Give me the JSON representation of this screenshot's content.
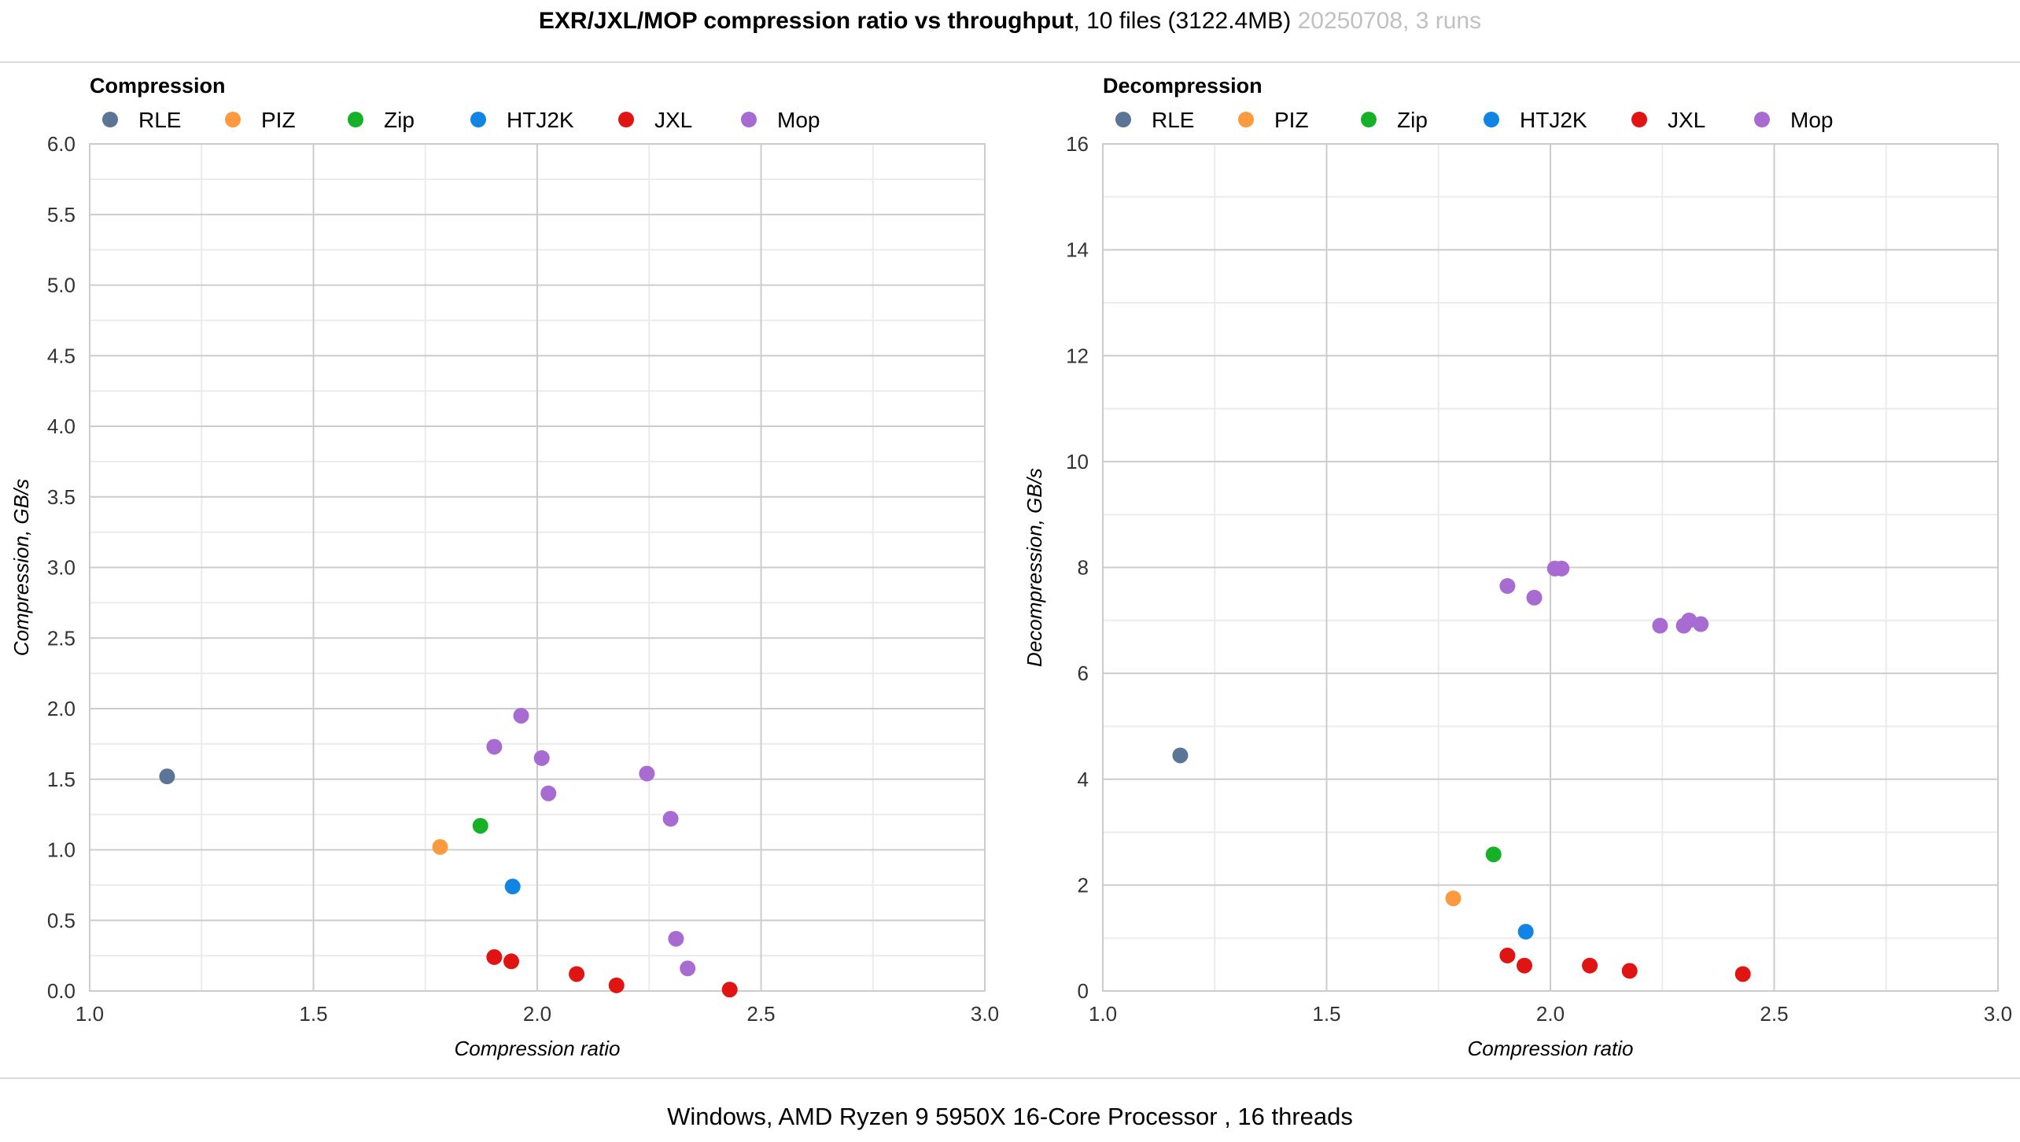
{
  "header": {
    "title_bold": "EXR/JXL/MOP compression ratio vs throughput",
    "title_normal": ", 10 files (3122.4MB)",
    "title_muted": " 20250708, 3 runs"
  },
  "footer": {
    "text": "Windows, AMD Ryzen 9 5950X 16-Core Processor , 16 threads"
  },
  "colors": {
    "RLE": "#5b7596",
    "PIZ": "#fb9a3f",
    "Zip": "#17b127",
    "HTJ2K": "#1085e3",
    "JXL": "#e11414",
    "Mop": "#a86bd1"
  },
  "chart_data": [
    {
      "type": "scatter",
      "title": "Compression",
      "xlabel": "Compression ratio",
      "ylabel": "Compression, GB/s",
      "xlim": [
        1.0,
        3.0
      ],
      "ylim": [
        0.0,
        6.0
      ],
      "x_ticks": [
        "1.0",
        "1.5",
        "2.0",
        "2.5",
        "3.0"
      ],
      "y_ticks": [
        "0.0",
        "0.5",
        "1.0",
        "1.5",
        "2.0",
        "2.5",
        "3.0",
        "3.5",
        "4.0",
        "4.5",
        "5.0",
        "5.5",
        "6.0"
      ],
      "grid": true,
      "legend": "top-left",
      "series": [
        {
          "name": "RLE",
          "points": [
            [
              1.173,
              1.52
            ]
          ]
        },
        {
          "name": "PIZ",
          "points": [
            [
              1.783,
              1.02
            ]
          ]
        },
        {
          "name": "Zip",
          "points": [
            [
              1.873,
              1.17
            ]
          ]
        },
        {
          "name": "HTJ2K",
          "points": [
            [
              1.945,
              0.74
            ]
          ]
        },
        {
          "name": "JXL",
          "points": [
            [
              1.904,
              0.24
            ],
            [
              1.942,
              0.21
            ],
            [
              2.088,
              0.12
            ],
            [
              2.177,
              0.04
            ],
            [
              2.43,
              0.01
            ]
          ]
        },
        {
          "name": "Mop",
          "points": [
            [
              1.904,
              1.73
            ],
            [
              1.964,
              1.95
            ],
            [
              2.01,
              1.65
            ],
            [
              2.025,
              1.4
            ],
            [
              2.245,
              1.54
            ],
            [
              2.298,
              1.22
            ],
            [
              2.31,
              0.37
            ],
            [
              2.336,
              0.16
            ]
          ]
        }
      ]
    },
    {
      "type": "scatter",
      "title": "Decompression",
      "xlabel": "Compression ratio",
      "ylabel": "Decompression, GB/s",
      "xlim": [
        1.0,
        3.0
      ],
      "ylim": [
        0,
        16
      ],
      "x_ticks": [
        "1.0",
        "1.5",
        "2.0",
        "2.5",
        "3.0"
      ],
      "y_ticks": [
        "0",
        "2",
        "4",
        "6",
        "8",
        "10",
        "12",
        "14",
        "16"
      ],
      "grid": true,
      "legend": "top-left",
      "series": [
        {
          "name": "RLE",
          "points": [
            [
              1.173,
              4.45
            ]
          ]
        },
        {
          "name": "PIZ",
          "points": [
            [
              1.783,
              1.75
            ]
          ]
        },
        {
          "name": "Zip",
          "points": [
            [
              1.873,
              2.58
            ]
          ]
        },
        {
          "name": "HTJ2K",
          "points": [
            [
              1.945,
              1.12
            ]
          ]
        },
        {
          "name": "JXL",
          "points": [
            [
              1.904,
              0.67
            ],
            [
              1.942,
              0.48
            ],
            [
              2.088,
              0.48
            ],
            [
              2.177,
              0.38
            ],
            [
              2.43,
              0.32
            ]
          ]
        },
        {
          "name": "Mop",
          "points": [
            [
              1.904,
              7.65
            ],
            [
              1.964,
              7.43
            ],
            [
              2.01,
              7.98
            ],
            [
              2.025,
              7.98
            ],
            [
              2.245,
              6.9
            ],
            [
              2.298,
              6.9
            ],
            [
              2.31,
              7.0
            ],
            [
              2.336,
              6.93
            ]
          ]
        }
      ]
    }
  ]
}
